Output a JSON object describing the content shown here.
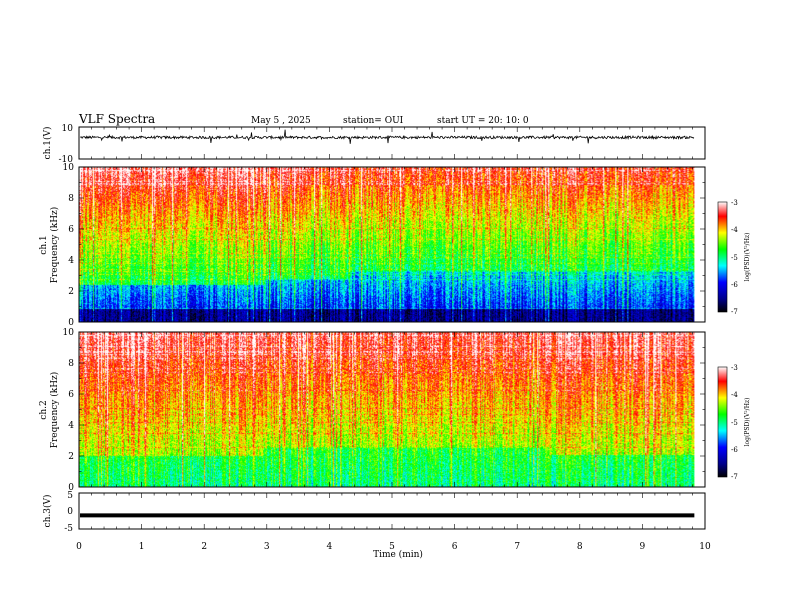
{
  "header": {
    "title": "VLF Spectra",
    "date": "May 5 , 2025",
    "station": "station= OUI",
    "start": "start UT = 20: 10: 0"
  },
  "chart_data": [
    {
      "type": "line",
      "panel": "ch1-waveform",
      "ylabel": "ch.1(V)",
      "ylim": [
        -10,
        10
      ],
      "yticks": [
        "10",
        "-10"
      ],
      "baseline": 3.5,
      "description_values": "noisy waveform around ~3.5 V with spikes",
      "xlim": [
        0,
        10
      ]
    },
    {
      "type": "heatmap",
      "panel": "ch1-spectrogram",
      "ylabel_top": "ch.1",
      "ylabel": "Frequency (kHz)",
      "ylim": [
        0,
        10
      ],
      "yticks": [
        "0",
        "2",
        "4",
        "6",
        "8",
        "10"
      ],
      "xlim": [
        0,
        10
      ],
      "data_end_min": 9.83,
      "colorbar": {
        "label": "log(PSD)(V²/Hz)",
        "range": [
          -7,
          -3
        ],
        "ticks": [
          "-3",
          "-4",
          "-5",
          "-6",
          "-7"
        ]
      }
    },
    {
      "type": "heatmap",
      "panel": "ch2-spectrogram",
      "ylabel_top": "ch.2",
      "ylabel": "Frequency (kHz)",
      "ylim": [
        0,
        10
      ],
      "yticks": [
        "0",
        "2",
        "4",
        "6",
        "8",
        "10"
      ],
      "xlim": [
        0,
        10
      ],
      "data_end_min": 9.83,
      "colorbar": {
        "label": "log(PSD)(V²/Hz)",
        "range": [
          -7,
          -3
        ],
        "ticks": [
          "-3",
          "-4",
          "-5",
          "-6",
          "-7"
        ]
      }
    },
    {
      "type": "line",
      "panel": "ch3-waveform",
      "ylabel": "ch.3(V)",
      "ylim": [
        -5,
        5
      ],
      "yticks": [
        "5",
        "0",
        "-5"
      ],
      "baseline": -1.2,
      "xlim": [
        0,
        10
      ],
      "xlabel": "Time (min)",
      "xticks": [
        "0",
        "1",
        "2",
        "3",
        "4",
        "5",
        "6",
        "7",
        "8",
        "9",
        "10"
      ]
    }
  ]
}
